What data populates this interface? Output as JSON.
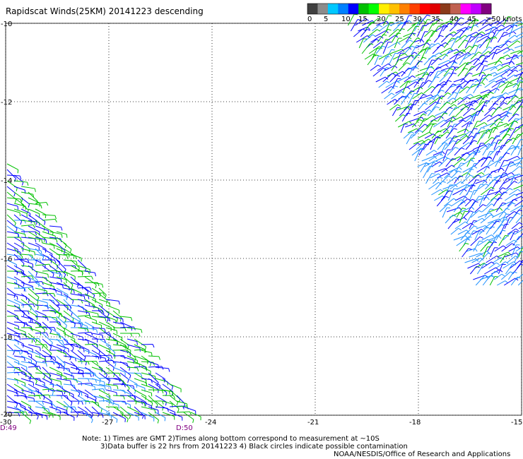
{
  "chart_data": {
    "type": "wind-barb-swath",
    "title": "Rapidscat Winds(25KM) 20141223 descending",
    "x_ticks": [
      "-30",
      "-27",
      "-24",
      "-21",
      "-18",
      "-15"
    ],
    "y_ticks": [
      "-10",
      "-12",
      "-14",
      "-16",
      "-18",
      "-20"
    ],
    "xlim": [
      -30,
      -15
    ],
    "ylim": [
      -20,
      -10
    ],
    "grid": "dotted",
    "colorbar": {
      "labels": [
        "0",
        "5",
        "10",
        "15",
        "20",
        "25",
        "30",
        "35",
        "40",
        "45",
        ">50 knots"
      ],
      "colors": [
        "#404040",
        "#8c8c8c",
        "#00c8ff",
        "#0080ff",
        "#0000ff",
        "#00c000",
        "#00ff00",
        "#ffee00",
        "#ffc000",
        "#ff8000",
        "#ff4000",
        "#ff0000",
        "#e00000",
        "#8b3a1a",
        "#c06050",
        "#ff00ff",
        "#c000ff",
        "#800080"
      ]
    },
    "swath_colors": {
      "blue": "#0000ff",
      "light_blue": "#1e90ff",
      "green": "#00c000"
    },
    "time_labels": [
      "D:49",
      "D:50"
    ]
  },
  "notes": {
    "line1": "Note: 1) Times are GMT 2)Times along bottom correspond to measurement at ~10S",
    "line2": "3)Data buffer is 22 hrs from 20141223 4) Black circles indicate possible contamination",
    "line3": "NOAA/NESDIS/Office of Research and Applications"
  }
}
